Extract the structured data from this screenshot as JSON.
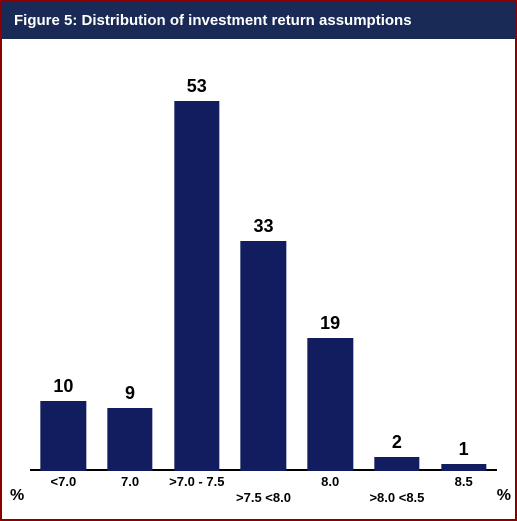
{
  "title": "Figure 5: Distribution of investment return assumptions",
  "header_bg": "#1a2a56",
  "header_color": "#ffffff",
  "header_fontsize": 15,
  "chart": {
    "type": "bar",
    "bar_color": "#111d5e",
    "label_color": "#000000",
    "label_fontsize": 18,
    "axis_label_fontsize": 13,
    "baseline_color": "#000000",
    "background_color": "#ffffff",
    "ylim_max": 58,
    "bar_width_ratio": 0.68,
    "axis_unit_left": "%",
    "axis_unit_right": "%",
    "categories": [
      {
        "label": "<7.0",
        "value": 10
      },
      {
        "label": "7.0",
        "value": 9
      },
      {
        "label": ">7.0 - 7.5",
        "value": 53
      },
      {
        "label": ">7.5 <8.0",
        "value": 33
      },
      {
        "label": "8.0",
        "value": 19
      },
      {
        "label": ">8.0 <8.5",
        "value": 2
      },
      {
        "label": "8.5",
        "value": 1
      }
    ]
  }
}
